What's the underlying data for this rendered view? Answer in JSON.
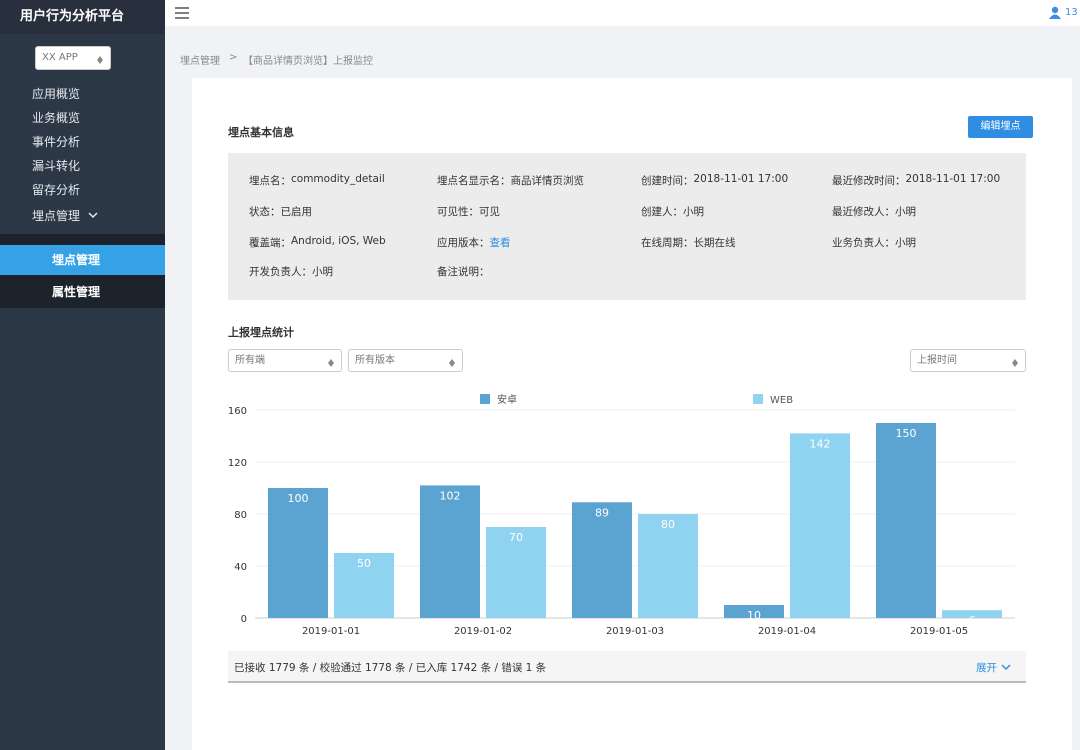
{
  "sidebar": {
    "title": "用户行为分析平台",
    "app_select": "XX APP",
    "menu": [
      "应用概览",
      "业务概览",
      "事件分析",
      "漏斗转化",
      "留存分析",
      "埋点管理"
    ],
    "submenu": [
      "埋点管理",
      "属性管理"
    ]
  },
  "topbar": {
    "user": "13"
  },
  "breadcrumb": {
    "parent": "埋点管理",
    "separator": ">",
    "current": "【商品详情页浏览】上报监控"
  },
  "info": {
    "title": "埋点基本信息",
    "edit_button": "编辑埋点",
    "fields": [
      [
        {
          "label": "埋点名：",
          "value": "commodity_detail"
        },
        {
          "label": "埋点名显示名：",
          "value": "商品详情页浏览"
        },
        {
          "label": "创建时间：",
          "value": "2018-11-01 17:00"
        },
        {
          "label": "最近修改时间：",
          "value": "2018-11-01 17:00"
        }
      ],
      [
        {
          "label": "状态：",
          "value": "已启用"
        },
        {
          "label": "可见性：",
          "value": "可见"
        },
        {
          "label": "创建人：",
          "value": "小明"
        },
        {
          "label": "最近修改人：",
          "value": "小明"
        }
      ],
      [
        {
          "label": "覆盖端：",
          "value": "Android, iOS, Web"
        },
        {
          "label": "应用版本：",
          "link": "查看"
        },
        {
          "label": "在线周期：",
          "value": "长期在线"
        },
        {
          "label": "业务负责人：",
          "value": "小明"
        }
      ],
      [
        {
          "label": "开发负责人：",
          "value": "小明"
        },
        {
          "label": "备注说明："
        }
      ]
    ]
  },
  "stats": {
    "title": "上报埋点统计",
    "filters": [
      "所有端",
      "所有版本"
    ],
    "time_filter": "上报时间",
    "summary": "已接收 1779 条 / 校验通过 1778 条 / 已入库 1742 条 / 错误 1 条",
    "expand": "展开"
  },
  "chart_data": {
    "type": "bar",
    "categories": [
      "2019-01-01",
      "2019-01-02",
      "2019-01-03",
      "2019-01-04",
      "2019-01-05"
    ],
    "series": [
      {
        "name": "安卓",
        "color": "#5ba3d0",
        "values": [
          100,
          102,
          89,
          10,
          150
        ]
      },
      {
        "name": "WEB",
        "color": "#8fd3f0",
        "values": [
          50,
          70,
          80,
          142,
          6
        ]
      }
    ],
    "ylim": [
      0,
      160
    ],
    "yticks": [
      0,
      40,
      80,
      120,
      160
    ],
    "grid": true
  }
}
